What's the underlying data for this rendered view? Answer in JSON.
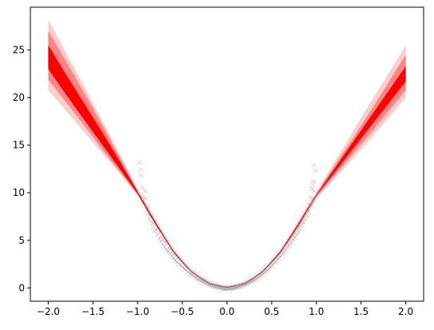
{
  "chart_data": {
    "type": "area",
    "title": "",
    "xlabel": "",
    "ylabel": "",
    "xlim": [
      -2.2,
      2.2
    ],
    "ylim": [
      -1.4,
      29.5
    ],
    "grid": false,
    "legend": "none",
    "x_ticks": [
      -2.0,
      -1.5,
      -1.0,
      -0.5,
      0.0,
      0.5,
      1.0,
      1.5,
      2.0
    ],
    "x_tick_labels": [
      "−2.0",
      "−1.5",
      "−1.0",
      "−0.5",
      "0.0",
      "0.5",
      "1.0",
      "1.5",
      "2.0"
    ],
    "y_ticks": [
      0,
      5,
      10,
      15,
      20,
      25
    ],
    "y_tick_labels": [
      "0",
      "5",
      "10",
      "15",
      "20",
      "25"
    ],
    "bands": {
      "color": "#ff0000",
      "x": [
        -2.0,
        -1.8,
        -1.6,
        -1.4,
        -1.2,
        -1.0,
        -0.8,
        -0.6,
        -0.4,
        -0.2,
        0.0,
        0.2,
        0.4,
        0.6,
        0.8,
        1.0,
        1.2,
        1.4,
        1.6,
        1.8,
        2.0
      ],
      "outer_lower": [
        20.8,
        18.6,
        16.4,
        14.2,
        12.0,
        9.7,
        6.6,
        3.7,
        1.6,
        0.4,
        0.0,
        0.4,
        1.6,
        3.6,
        6.4,
        9.4,
        11.4,
        13.5,
        15.6,
        17.8,
        20.0
      ],
      "outer_upper": [
        28.2,
        24.7,
        21.2,
        17.6,
        14.0,
        10.3,
        7.0,
        4.0,
        1.8,
        0.5,
        0.1,
        0.5,
        1.8,
        4.0,
        7.0,
        10.1,
        13.2,
        16.3,
        19.4,
        22.4,
        25.5
      ],
      "mid_lower": [
        21.9,
        19.5,
        17.1,
        14.6,
        12.2,
        9.8,
        6.65,
        3.75,
        1.65,
        0.42,
        0.02,
        0.42,
        1.65,
        3.7,
        6.5,
        9.6,
        11.8,
        14.0,
        16.2,
        18.5,
        20.8
      ],
      "mid_upper": [
        27.0,
        23.8,
        20.5,
        17.2,
        13.7,
        10.2,
        6.95,
        3.95,
        1.75,
        0.48,
        0.08,
        0.48,
        1.75,
        3.9,
        6.85,
        9.9,
        12.8,
        15.6,
        18.5,
        21.5,
        24.5
      ],
      "inner_lower": [
        23.0,
        20.3,
        17.7,
        15.1,
        12.5,
        9.9,
        6.7,
        3.8,
        1.68,
        0.44,
        0.04,
        0.44,
        1.68,
        3.75,
        6.6,
        9.7,
        12.1,
        14.5,
        16.9,
        19.3,
        21.7
      ],
      "inner_upper": [
        25.5,
        22.4,
        19.4,
        16.4,
        13.3,
        10.1,
        6.9,
        3.9,
        1.72,
        0.46,
        0.06,
        0.46,
        1.72,
        3.85,
        6.75,
        9.8,
        12.5,
        15.2,
        17.9,
        20.6,
        23.3
      ]
    },
    "scatter": {
      "marker": "x",
      "color": "#000000",
      "alpha": 0.15,
      "x_range": [
        -1.0,
        1.0
      ],
      "trend": "y ≈ 10·x²",
      "points": [
        [
          -0.98,
          13.2
        ],
        [
          -0.97,
          12.4
        ],
        [
          -0.96,
          11.8
        ],
        [
          -0.95,
          10.6
        ],
        [
          -0.94,
          9.6
        ],
        [
          -0.93,
          8.9
        ],
        [
          -0.92,
          10.2
        ],
        [
          -0.91,
          9.4
        ],
        [
          -0.9,
          8.2
        ],
        [
          -0.89,
          7.8
        ],
        [
          -0.88,
          8.6
        ],
        [
          -0.87,
          7.2
        ],
        [
          -0.86,
          7.6
        ],
        [
          -0.85,
          6.9
        ],
        [
          -0.84,
          7.5
        ],
        [
          -0.83,
          6.4
        ],
        [
          -0.82,
          6.8
        ],
        [
          -0.81,
          6.0
        ],
        [
          -0.8,
          7.0
        ],
        [
          -0.79,
          6.1
        ],
        [
          -0.78,
          5.6
        ],
        [
          -0.77,
          6.3
        ],
        [
          -0.76,
          5.2
        ],
        [
          -0.75,
          5.9
        ],
        [
          -0.74,
          4.9
        ],
        [
          -0.73,
          5.4
        ],
        [
          -0.72,
          4.6
        ],
        [
          -0.71,
          5.1
        ],
        [
          -0.7,
          4.3
        ],
        [
          -0.69,
          4.8
        ],
        [
          -0.68,
          4.0
        ],
        [
          -0.67,
          4.7
        ],
        [
          -0.66,
          3.8
        ],
        [
          -0.65,
          4.2
        ],
        [
          -0.64,
          3.6
        ],
        [
          -0.63,
          4.1
        ],
        [
          -0.62,
          3.3
        ],
        [
          -0.61,
          3.9
        ],
        [
          -0.6,
          3.1
        ],
        [
          -0.59,
          3.6
        ],
        [
          -0.58,
          2.9
        ],
        [
          -0.57,
          3.4
        ],
        [
          -0.56,
          2.7
        ],
        [
          -0.55,
          3.2
        ],
        [
          -0.54,
          2.5
        ],
        [
          -0.53,
          3.0
        ],
        [
          -0.52,
          2.4
        ],
        [
          -0.51,
          2.8
        ],
        [
          -0.5,
          2.2
        ],
        [
          -0.49,
          2.6
        ],
        [
          -0.48,
          2.0
        ],
        [
          -0.47,
          2.4
        ],
        [
          -0.46,
          1.9
        ],
        [
          -0.45,
          2.2
        ],
        [
          -0.44,
          1.7
        ],
        [
          -0.43,
          2.1
        ],
        [
          -0.42,
          1.5
        ],
        [
          -0.41,
          1.9
        ],
        [
          -0.4,
          1.4
        ],
        [
          -0.39,
          1.7
        ],
        [
          -0.38,
          1.3
        ],
        [
          -0.37,
          1.6
        ],
        [
          -0.36,
          1.1
        ],
        [
          -0.35,
          1.4
        ],
        [
          -0.34,
          1.0
        ],
        [
          -0.33,
          1.3
        ],
        [
          -0.32,
          0.9
        ],
        [
          -0.31,
          1.1
        ],
        [
          -0.3,
          0.8
        ],
        [
          -0.29,
          1.0
        ],
        [
          -0.28,
          0.7
        ],
        [
          -0.27,
          0.9
        ],
        [
          -0.26,
          0.6
        ],
        [
          -0.25,
          0.8
        ],
        [
          -0.24,
          0.5
        ],
        [
          -0.23,
          0.7
        ],
        [
          -0.22,
          0.4
        ],
        [
          -0.21,
          0.6
        ],
        [
          -0.2,
          0.3
        ],
        [
          -0.19,
          0.5
        ],
        [
          -0.18,
          0.25
        ],
        [
          -0.17,
          0.4
        ],
        [
          -0.16,
          0.2
        ],
        [
          -0.15,
          0.3
        ],
        [
          -0.14,
          0.15
        ],
        [
          -0.13,
          0.25
        ],
        [
          -0.12,
          0.1
        ],
        [
          -0.11,
          0.2
        ],
        [
          -0.1,
          0.05
        ],
        [
          -0.09,
          0.15
        ],
        [
          -0.08,
          0.0
        ],
        [
          -0.07,
          0.1
        ],
        [
          -0.06,
          -0.05
        ],
        [
          -0.05,
          0.05
        ],
        [
          -0.04,
          -0.1
        ],
        [
          -0.03,
          0.0
        ],
        [
          -0.02,
          -0.1
        ],
        [
          -0.01,
          0.02
        ],
        [
          0.0,
          -0.05
        ],
        [
          0.01,
          0.03
        ],
        [
          0.02,
          -0.08
        ],
        [
          0.03,
          0.02
        ],
        [
          0.04,
          -0.06
        ],
        [
          0.05,
          0.06
        ],
        [
          0.06,
          -0.02
        ],
        [
          0.07,
          0.08
        ],
        [
          0.08,
          0.02
        ],
        [
          0.09,
          0.12
        ],
        [
          0.1,
          0.05
        ],
        [
          0.11,
          0.18
        ],
        [
          0.12,
          0.1
        ],
        [
          0.13,
          0.22
        ],
        [
          0.14,
          0.15
        ],
        [
          0.15,
          0.3
        ],
        [
          0.16,
          0.2
        ],
        [
          0.17,
          0.38
        ],
        [
          0.18,
          0.28
        ],
        [
          0.19,
          0.45
        ],
        [
          0.2,
          0.35
        ],
        [
          0.21,
          0.55
        ],
        [
          0.22,
          0.42
        ],
        [
          0.23,
          0.65
        ],
        [
          0.24,
          0.5
        ],
        [
          0.25,
          0.75
        ],
        [
          0.26,
          0.6
        ],
        [
          0.27,
          0.85
        ],
        [
          0.28,
          0.7
        ],
        [
          0.29,
          0.95
        ],
        [
          0.3,
          0.8
        ],
        [
          0.31,
          1.1
        ],
        [
          0.32,
          0.9
        ],
        [
          0.33,
          1.25
        ],
        [
          0.34,
          1.05
        ],
        [
          0.35,
          1.4
        ],
        [
          0.36,
          1.15
        ],
        [
          0.37,
          1.55
        ],
        [
          0.38,
          1.3
        ],
        [
          0.39,
          1.7
        ],
        [
          0.4,
          1.45
        ],
        [
          0.41,
          1.9
        ],
        [
          0.42,
          1.6
        ],
        [
          0.43,
          2.05
        ],
        [
          0.44,
          1.75
        ],
        [
          0.45,
          2.25
        ],
        [
          0.46,
          1.95
        ],
        [
          0.47,
          2.4
        ],
        [
          0.48,
          2.1
        ],
        [
          0.49,
          2.6
        ],
        [
          0.5,
          2.3
        ],
        [
          0.51,
          2.8
        ],
        [
          0.52,
          2.5
        ],
        [
          0.53,
          3.0
        ],
        [
          0.54,
          2.7
        ],
        [
          0.55,
          3.25
        ],
        [
          0.56,
          2.9
        ],
        [
          0.57,
          3.45
        ],
        [
          0.58,
          3.1
        ],
        [
          0.59,
          3.7
        ],
        [
          0.6,
          3.3
        ],
        [
          0.61,
          3.95
        ],
        [
          0.62,
          3.5
        ],
        [
          0.63,
          4.2
        ],
        [
          0.64,
          3.8
        ],
        [
          0.65,
          4.45
        ],
        [
          0.66,
          4.0
        ],
        [
          0.67,
          4.7
        ],
        [
          0.68,
          4.3
        ],
        [
          0.69,
          4.95
        ],
        [
          0.7,
          4.5
        ],
        [
          0.71,
          5.25
        ],
        [
          0.72,
          4.8
        ],
        [
          0.73,
          5.5
        ],
        [
          0.74,
          5.1
        ],
        [
          0.75,
          5.8
        ],
        [
          0.76,
          5.3
        ],
        [
          0.77,
          6.1
        ],
        [
          0.78,
          5.6
        ],
        [
          0.79,
          6.4
        ],
        [
          0.8,
          5.9
        ],
        [
          0.81,
          6.7
        ],
        [
          0.82,
          6.2
        ],
        [
          0.83,
          7.0
        ],
        [
          0.84,
          6.6
        ],
        [
          0.85,
          7.4
        ],
        [
          0.86,
          6.9
        ],
        [
          0.87,
          7.8
        ],
        [
          0.88,
          7.2
        ],
        [
          0.89,
          8.3
        ],
        [
          0.9,
          7.6
        ],
        [
          0.91,
          8.8
        ],
        [
          0.92,
          8.1
        ],
        [
          0.93,
          9.5
        ],
        [
          0.94,
          8.6
        ],
        [
          0.95,
          10.4
        ],
        [
          0.96,
          9.4
        ],
        [
          0.97,
          11.2
        ],
        [
          0.98,
          10.2
        ],
        [
          0.99,
          12.3
        ],
        [
          0.97,
          12.9
        ],
        [
          0.96,
          10.8
        ]
      ]
    }
  }
}
